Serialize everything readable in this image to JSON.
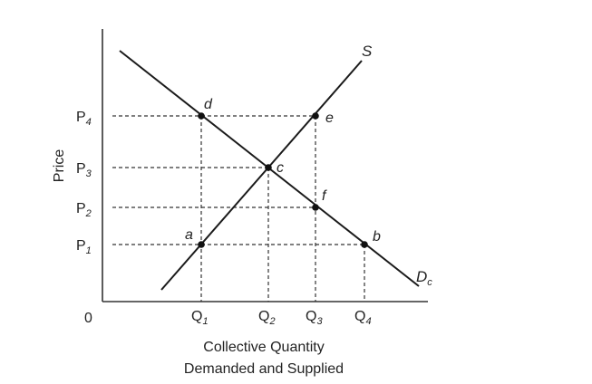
{
  "chart_data": {
    "type": "supply-demand",
    "ylabel": "Price",
    "xlabel_lines": [
      "Collective Quantity",
      "Demanded and Supplied"
    ],
    "origin_label": "0",
    "price_levels": [
      {
        "base": "P",
        "sub": "1"
      },
      {
        "base": "P",
        "sub": "2"
      },
      {
        "base": "P",
        "sub": "3"
      },
      {
        "base": "P",
        "sub": "4"
      }
    ],
    "quantity_levels": [
      {
        "base": "Q",
        "sub": "1"
      },
      {
        "base": "Q",
        "sub": "2"
      },
      {
        "base": "Q",
        "sub": "3"
      },
      {
        "base": "Q",
        "sub": "4"
      }
    ],
    "curves": {
      "supply": {
        "label": "S"
      },
      "demand": {
        "base": "D",
        "sub": "c"
      }
    },
    "points": [
      {
        "label": "a",
        "q": 1,
        "p": 1,
        "on": "supply"
      },
      {
        "label": "b",
        "q": 4,
        "p": 1,
        "on": "demand"
      },
      {
        "label": "c",
        "q": 2,
        "p": 3,
        "on": "both"
      },
      {
        "label": "d",
        "q": 1,
        "p": 4,
        "on": "demand"
      },
      {
        "label": "e",
        "q": 3,
        "p": 4,
        "on": "supply"
      },
      {
        "label": "f",
        "q": 3,
        "p": 2,
        "on": "demand"
      }
    ]
  }
}
